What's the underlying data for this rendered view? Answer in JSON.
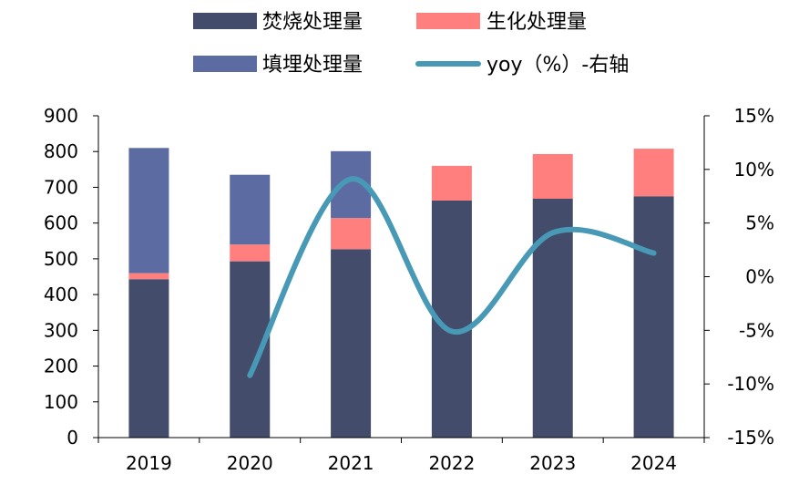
{
  "chart_data": {
    "type": "bar",
    "stacked": true,
    "categories": [
      "2019",
      "2020",
      "2021",
      "2022",
      "2023",
      "2024"
    ],
    "series": [
      {
        "name": "焚烧处理量",
        "type": "bar",
        "axis": "left",
        "color": "#434C6B",
        "values": [
          443,
          493,
          527,
          663,
          668,
          675
        ]
      },
      {
        "name": "生化处理量",
        "type": "bar",
        "axis": "left",
        "color": "#FF7F7F",
        "values": [
          17,
          47,
          87,
          97,
          125,
          133
        ]
      },
      {
        "name": "填埋处理量",
        "type": "bar",
        "axis": "left",
        "color": "#5C6BA1",
        "values": [
          350,
          195,
          187,
          0,
          0,
          0
        ]
      },
      {
        "name": "yoy（%）-右轴",
        "type": "line",
        "axis": "right",
        "color": "#4799B6",
        "values": [
          null,
          -9.2,
          9.1,
          -5.1,
          4.1,
          2.2
        ]
      }
    ],
    "left_axis": {
      "min": 0,
      "max": 900,
      "step": 100,
      "tick_labels": [
        "0",
        "100",
        "200",
        "300",
        "400",
        "500",
        "600",
        "700",
        "800",
        "900"
      ]
    },
    "right_axis": {
      "min": -15,
      "max": 15,
      "step": 5,
      "tick_labels": [
        "-15%",
        "-10%",
        "-5%",
        "0%",
        "5%",
        "10%",
        "15%"
      ]
    },
    "legend_position": "top",
    "grid": false
  }
}
